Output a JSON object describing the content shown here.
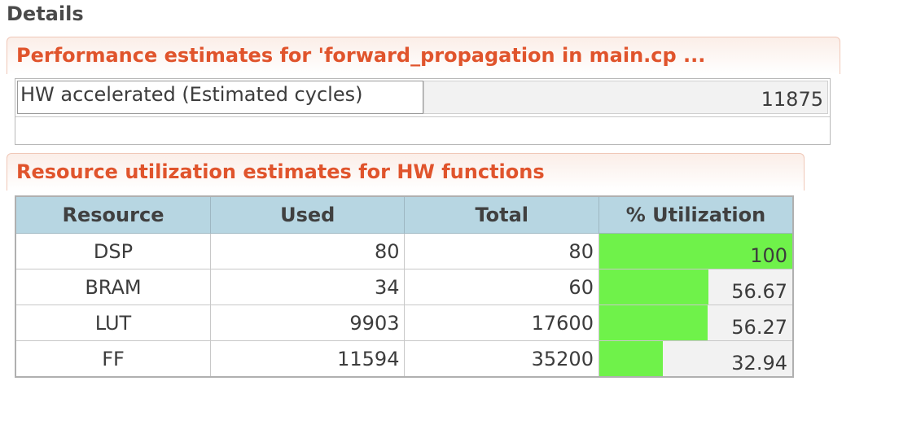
{
  "panel": {
    "title": "Details"
  },
  "performance": {
    "title": "Performance estimates for 'forward_propagation in main.cp ...",
    "rows": [
      {
        "label": "HW accelerated (Estimated cycles)",
        "value": "11875"
      }
    ]
  },
  "resources": {
    "title": "Resource utilization estimates for HW functions",
    "columns": [
      "Resource",
      "Used",
      "Total",
      "% Utilization"
    ],
    "rows": [
      {
        "resource": "DSP",
        "used": "80",
        "total": "80",
        "utilization": "100",
        "utilization_fraction": 1.0
      },
      {
        "resource": "BRAM",
        "used": "34",
        "total": "60",
        "utilization": "56.67",
        "utilization_fraction": 0.5667
      },
      {
        "resource": "LUT",
        "used": "9903",
        "total": "17600",
        "utilization": "56.27",
        "utilization_fraction": 0.5627
      },
      {
        "resource": "FF",
        "used": "11594",
        "total": "35200",
        "utilization": "32.94",
        "utilization_fraction": 0.3294
      }
    ]
  },
  "colors": {
    "section_title": "#e0542c",
    "table_header": "#b7d6e2",
    "utilization_bar": "#6ff24a"
  }
}
